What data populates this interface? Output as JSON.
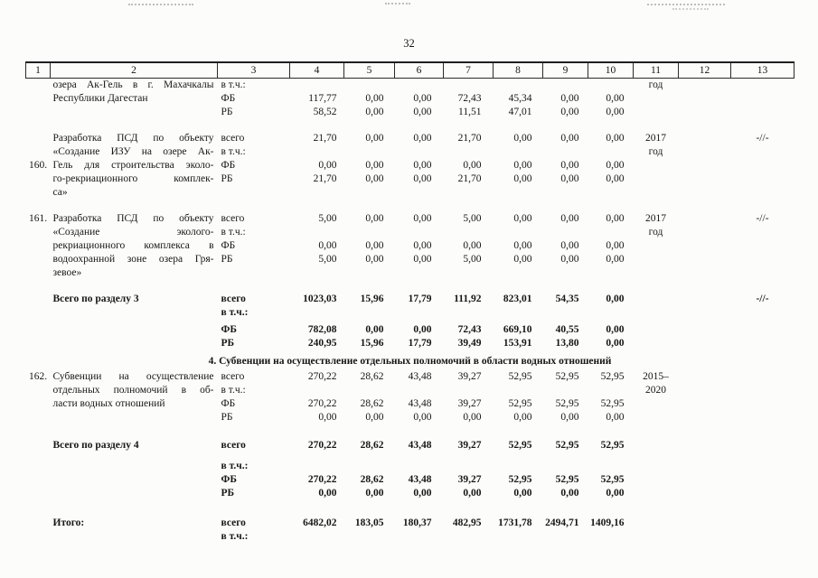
{
  "page": {
    "number": "32"
  },
  "table": {
    "header": [
      "1",
      "2",
      "3",
      "4",
      "5",
      "6",
      "7",
      "8",
      "9",
      "10",
      "11",
      "12",
      "13"
    ],
    "lines": [
      {
        "type": "row",
        "j": true,
        "cells": [
          "",
          "озера Ак-Гель в г. Махачкалы",
          "в т.ч.:",
          "",
          "",
          "",
          "",
          "",
          "",
          "",
          "год",
          "",
          ""
        ]
      },
      {
        "type": "row",
        "cells": [
          "",
          "Республики Дагестан",
          "ФБ",
          "117,77",
          "0,00",
          "0,00",
          "72,43",
          "45,34",
          "0,00",
          "0,00",
          "",
          "",
          ""
        ]
      },
      {
        "type": "row",
        "cells": [
          "",
          "",
          "РБ",
          "58,52",
          "0,00",
          "0,00",
          "11,51",
          "47,01",
          "0,00",
          "0,00",
          "",
          "",
          ""
        ]
      },
      {
        "type": "spacer",
        "h": 14
      },
      {
        "type": "row",
        "j": true,
        "cells": [
          "",
          "Разработка ПСД по объекту",
          "всего",
          "21,70",
          "0,00",
          "0,00",
          "21,70",
          "0,00",
          "0,00",
          "0,00",
          "2017",
          "",
          "-//-"
        ]
      },
      {
        "type": "row",
        "j": true,
        "cells": [
          "",
          "«Создание ИЗУ на озере Ак-",
          "в т.ч.:",
          "",
          "",
          "",
          "",
          "",
          "",
          "",
          "год",
          "",
          ""
        ]
      },
      {
        "type": "row",
        "j": true,
        "cells": [
          "160.",
          "Гель для строительства эколо-",
          "ФБ",
          "0,00",
          "0,00",
          "0,00",
          "0,00",
          "0,00",
          "0,00",
          "0,00",
          "",
          "",
          ""
        ]
      },
      {
        "type": "row",
        "j": true,
        "cells": [
          "",
          "го-рекриационного комплек-",
          "РБ",
          "21,70",
          "0,00",
          "0,00",
          "21,70",
          "0,00",
          "0,00",
          "0,00",
          "",
          "",
          ""
        ]
      },
      {
        "type": "row",
        "cells": [
          "",
          "са»",
          "",
          "",
          "",
          "",
          "",
          "",
          "",
          "",
          "",
          "",
          ""
        ]
      },
      {
        "type": "spacer",
        "h": 14
      },
      {
        "type": "row",
        "j": true,
        "cells": [
          "161.",
          "Разработка ПСД по объекту",
          "всего",
          "5,00",
          "0,00",
          "0,00",
          "5,00",
          "0,00",
          "0,00",
          "0,00",
          "2017",
          "",
          "-//-"
        ]
      },
      {
        "type": "row",
        "j": true,
        "cells": [
          "",
          "«Создание эколого-",
          "в т.ч.:",
          "",
          "",
          "",
          "",
          "",
          "",
          "",
          "год",
          "",
          ""
        ]
      },
      {
        "type": "row",
        "j": true,
        "cells": [
          "",
          "рекриационного комплекса в",
          "ФБ",
          "0,00",
          "0,00",
          "0,00",
          "0,00",
          "0,00",
          "0,00",
          "0,00",
          "",
          "",
          ""
        ]
      },
      {
        "type": "row",
        "j": true,
        "cells": [
          "",
          "водоохранной зоне озера Гря-",
          "РБ",
          "5,00",
          "0,00",
          "0,00",
          "5,00",
          "0,00",
          "0,00",
          "0,00",
          "",
          "",
          ""
        ]
      },
      {
        "type": "row",
        "cells": [
          "",
          "зевое»",
          "",
          "",
          "",
          "",
          "",
          "",
          "",
          "",
          "",
          "",
          ""
        ]
      },
      {
        "type": "spacer",
        "h": 14
      },
      {
        "type": "row",
        "bold": true,
        "cells": [
          "",
          "Всего по разделу 3",
          "всего",
          "1023,03",
          "15,96",
          "17,79",
          "111,92",
          "823,01",
          "54,35",
          "0,00",
          "",
          "",
          "-//-"
        ]
      },
      {
        "type": "row",
        "bold": true,
        "cells": [
          "",
          "",
          "в т.ч.:",
          "",
          "",
          "",
          "",
          "",
          "",
          "",
          "",
          "",
          ""
        ]
      },
      {
        "type": "spacer",
        "h": 4
      },
      {
        "type": "row",
        "bold": true,
        "cells": [
          "",
          "",
          "ФБ",
          "782,08",
          "0,00",
          "0,00",
          "72,43",
          "669,10",
          "40,55",
          "0,00",
          "",
          "",
          ""
        ]
      },
      {
        "type": "row",
        "bold": true,
        "cells": [
          "",
          "",
          "РБ",
          "240,95",
          "15,96",
          "17,79",
          "39,49",
          "153,91",
          "13,80",
          "0,00",
          "",
          "",
          ""
        ]
      },
      {
        "type": "section",
        "text": "4. Субвенции на осуществление отдельных полномочий в области водных отношений"
      },
      {
        "type": "row",
        "j": true,
        "cells": [
          "162.",
          "Субвенции на осуществление",
          "всего",
          "270,22",
          "28,62",
          "43,48",
          "39,27",
          "52,95",
          "52,95",
          "52,95",
          "2015–",
          "",
          ""
        ]
      },
      {
        "type": "row",
        "j": true,
        "cells": [
          "",
          "отдельных полномочий в об-",
          "в т.ч.:",
          "",
          "",
          "",
          "",
          "",
          "",
          "",
          "2020",
          "",
          ""
        ]
      },
      {
        "type": "row",
        "cells": [
          "",
          "ласти водных отношений",
          "ФБ",
          "270,22",
          "28,62",
          "43,48",
          "39,27",
          "52,95",
          "52,95",
          "52,95",
          "",
          "",
          ""
        ]
      },
      {
        "type": "row",
        "cells": [
          "",
          "",
          "РБ",
          "0,00",
          "0,00",
          "0,00",
          "0,00",
          "0,00",
          "0,00",
          "0,00",
          "",
          "",
          ""
        ]
      },
      {
        "type": "spacer",
        "h": 16
      },
      {
        "type": "row",
        "bold": true,
        "cells": [
          "",
          "Всего по разделу 4",
          "всего",
          "270,22",
          "28,62",
          "43,48",
          "39,27",
          "52,95",
          "52,95",
          "52,95",
          "",
          "",
          ""
        ]
      },
      {
        "type": "spacer",
        "h": 8
      },
      {
        "type": "row",
        "bold": true,
        "cells": [
          "",
          "",
          "в т.ч.:",
          "",
          "",
          "",
          "",
          "",
          "",
          "",
          "",
          "",
          ""
        ]
      },
      {
        "type": "row",
        "bold": true,
        "cells": [
          "",
          "",
          "ФБ",
          "270,22",
          "28,62",
          "43,48",
          "39,27",
          "52,95",
          "52,95",
          "52,95",
          "",
          "",
          ""
        ]
      },
      {
        "type": "row",
        "bold": true,
        "cells": [
          "",
          "",
          "РБ",
          "0,00",
          "0,00",
          "0,00",
          "0,00",
          "0,00",
          "0,00",
          "0,00",
          "",
          "",
          ""
        ]
      },
      {
        "type": "spacer",
        "h": 18
      },
      {
        "type": "row",
        "bold": true,
        "cells": [
          "",
          "Итого:",
          "всего",
          "6482,02",
          "183,05",
          "180,37",
          "482,95",
          "1731,78",
          "2494,71",
          "1409,16",
          "",
          "",
          ""
        ]
      },
      {
        "type": "row",
        "bold": true,
        "cells": [
          "",
          "",
          "в т.ч.:",
          "",
          "",
          "",
          "",
          "",
          "",
          "",
          "",
          "",
          ""
        ]
      }
    ]
  }
}
